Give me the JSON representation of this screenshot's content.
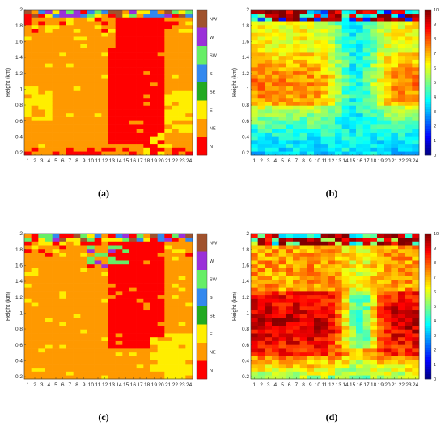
{
  "chart_data": [
    {
      "type": "heatmap",
      "panel_label": "(a)",
      "xlabel": "",
      "ylabel": "Height (km)",
      "x_ticks": [
        "1",
        "2",
        "3",
        "4",
        "5",
        "6",
        "7",
        "8",
        "9",
        "10",
        "11",
        "12",
        "13",
        "14",
        "15",
        "16",
        "17",
        "18",
        "19",
        "20",
        "21",
        "22",
        "23",
        "24"
      ],
      "y_ticks": [
        "0.2",
        "0.4",
        "0.6",
        "0.8",
        "1",
        "1.2",
        "1.4",
        "1.6",
        "1.8",
        "2"
      ],
      "ylim": [
        0.17,
        2.0
      ],
      "x_range": [
        1,
        24
      ],
      "legend": {
        "type": "categorical",
        "placement": "right",
        "labels": [
          "NW",
          "W",
          "SW",
          "S",
          "SE",
          "E",
          "NE",
          "N"
        ],
        "colors": [
          "#a0522d",
          "#9b30d9",
          "#66ee66",
          "#3388ee",
          "#22aa22",
          "#ffee00",
          "#ff9900",
          "#ff0000"
        ]
      },
      "description_values": {
        "dominant_category": "NE",
        "N_core_hours": [
          13,
          20
        ],
        "N_core_height_km": [
          0.3,
          1.9
        ],
        "E_patches": [
          "hours 1-4 at 0.6-1.0 km",
          "hours 21-24 at 0.5-1.0 km"
        ]
      }
    },
    {
      "type": "heatmap",
      "panel_label": "(b)",
      "xlabel": "",
      "ylabel": "Height (km)",
      "x_ticks": [
        "1",
        "2",
        "3",
        "4",
        "5",
        "6",
        "7",
        "8",
        "9",
        "10",
        "11",
        "12",
        "13",
        "14",
        "15",
        "16",
        "17",
        "18",
        "19",
        "20",
        "21",
        "22",
        "23",
        "24"
      ],
      "y_ticks": [
        "0.2",
        "0.4",
        "0.6",
        "0.8",
        "1",
        "1.2",
        "1.4",
        "1.6",
        "1.8",
        "2"
      ],
      "ylim": [
        0.17,
        2.0
      ],
      "x_range": [
        1,
        24
      ],
      "colorbar": {
        "placement": "right",
        "min": 0,
        "max": 10,
        "ticks": [
          "0",
          "1",
          "2",
          "3",
          "4",
          "5",
          "6",
          "7",
          "8",
          "9",
          "10"
        ],
        "colormap": "jet"
      },
      "description_values": {
        "high_region": "hours 1-11 at 0.8-1.4 km ~7-8",
        "low_region": "near surface ~3-4; hours 13-18 ~4"
      }
    },
    {
      "type": "heatmap",
      "panel_label": "(c)",
      "xlabel": "",
      "ylabel": "Height (km)",
      "x_ticks": [
        "1",
        "2",
        "3",
        "4",
        "5",
        "6",
        "7",
        "8",
        "9",
        "10",
        "11",
        "12",
        "13",
        "14",
        "15",
        "16",
        "17",
        "18",
        "19",
        "20",
        "21",
        "22",
        "23",
        "24"
      ],
      "y_ticks": [
        "0.2",
        "0.4",
        "0.6",
        "0.8",
        "1",
        "1.2",
        "1.4",
        "1.6",
        "1.8",
        "2"
      ],
      "ylim": [
        0.17,
        2.0
      ],
      "x_range": [
        1,
        24
      ],
      "legend": {
        "type": "categorical",
        "placement": "right",
        "labels": [
          "NW",
          "W",
          "SW",
          "S",
          "SE",
          "E",
          "NE",
          "N"
        ],
        "colors": [
          "#a0522d",
          "#9b30d9",
          "#66ee66",
          "#3388ee",
          "#22aa22",
          "#ffee00",
          "#ff9900",
          "#ff0000"
        ]
      },
      "description_values": {
        "dominant_category": "NE",
        "N_core_hours": [
          13,
          20
        ],
        "N_core_height_km": [
          0.7,
          1.95
        ],
        "W_patch": "hours 10-15 above 1.6 km"
      }
    },
    {
      "type": "heatmap",
      "panel_label": "(d)",
      "xlabel": "",
      "ylabel": "Height (km)",
      "x_ticks": [
        "1",
        "2",
        "3",
        "4",
        "5",
        "6",
        "7",
        "8",
        "9",
        "10",
        "11",
        "12",
        "13",
        "14",
        "15",
        "16",
        "17",
        "18",
        "19",
        "20",
        "21",
        "22",
        "23",
        "24"
      ],
      "y_ticks": [
        "0.2",
        "0.4",
        "0.6",
        "0.8",
        "1",
        "1.2",
        "1.4",
        "1.6",
        "1.8",
        "2"
      ],
      "ylim": [
        0.17,
        2.0
      ],
      "x_range": [
        1,
        24
      ],
      "colorbar": {
        "placement": "right",
        "min": 0,
        "max": 10,
        "ticks": [
          "0",
          "1",
          "2",
          "3",
          "4",
          "5",
          "6",
          "7",
          "8",
          "9",
          "10"
        ],
        "colormap": "jet"
      },
      "description_values": {
        "high_region": "hours 1-12 at 0.6-1.2 km ~9-10",
        "low_region": "hours 14-18 at 0.6-1.0 km ~4-5"
      }
    }
  ]
}
